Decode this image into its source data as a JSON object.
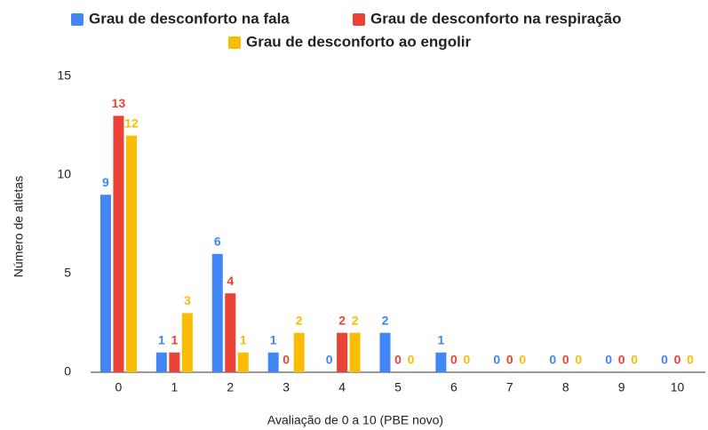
{
  "chart_data": {
    "type": "bar",
    "categories": [
      "0",
      "1",
      "2",
      "3",
      "4",
      "5",
      "6",
      "7",
      "8",
      "9",
      "10"
    ],
    "series": [
      {
        "name": "Grau de desconforto na fala",
        "color": "#4285f4",
        "values": [
          9,
          1,
          6,
          1,
          0,
          2,
          1,
          0,
          0,
          0,
          0
        ]
      },
      {
        "name": "Grau de desconforto na respiração",
        "color": "#ea4335",
        "values": [
          13,
          1,
          4,
          0,
          2,
          0,
          0,
          0,
          0,
          0,
          0
        ]
      },
      {
        "name": "Grau de desconforto ao engolir",
        "color": "#fbbc04",
        "values": [
          12,
          3,
          1,
          2,
          2,
          0,
          0,
          0,
          0,
          0,
          0
        ]
      }
    ],
    "x_label": "Avaliação de 0 a 10 (PBE novo)",
    "y_label": "Número de atletas",
    "ylim": [
      0,
      15
    ],
    "yticks": [
      0,
      5,
      10,
      15
    ],
    "grid": false,
    "legend": "top"
  }
}
